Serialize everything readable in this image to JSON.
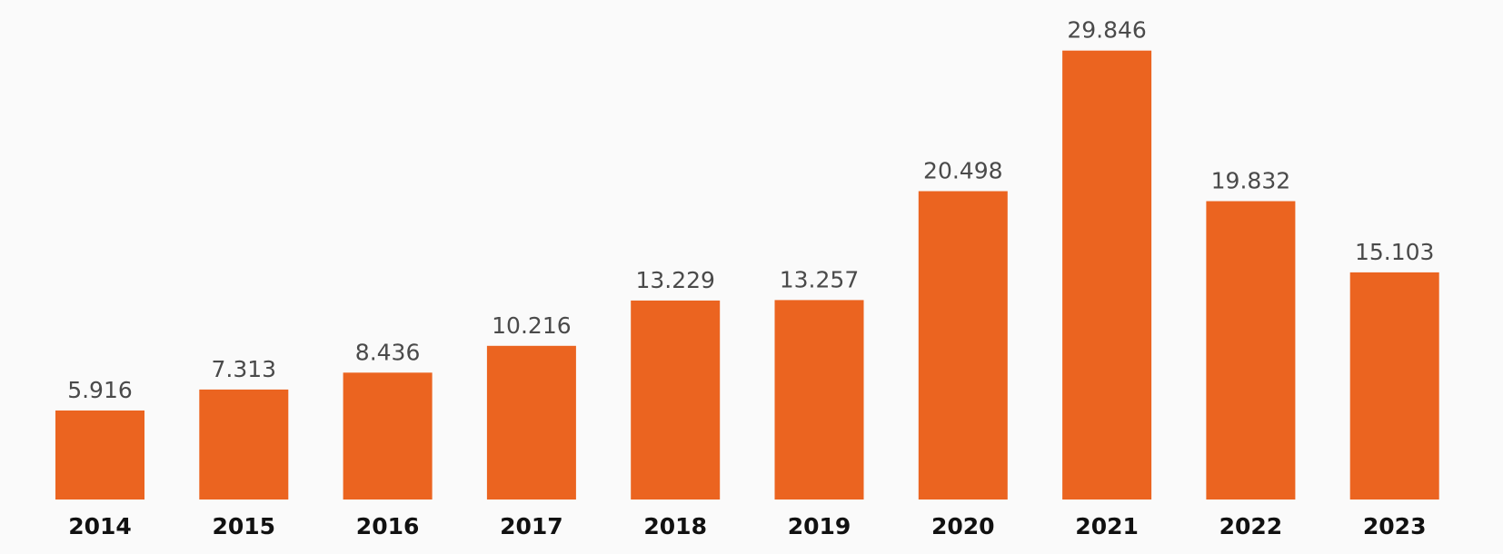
{
  "chart_data": {
    "type": "bar",
    "title": "",
    "xlabel": "",
    "ylabel": "",
    "categories": [
      "2014",
      "2015",
      "2016",
      "2017",
      "2018",
      "2019",
      "2020",
      "2021",
      "2022",
      "2023"
    ],
    "values": [
      5.916,
      7.313,
      8.436,
      10.216,
      13.229,
      13.257,
      20.498,
      29.846,
      19.832,
      15.103
    ],
    "value_labels": [
      "5.916",
      "7.313",
      "8.436",
      "10.216",
      "13.229",
      "13.257",
      "20.498",
      "29.846",
      "19.832",
      "15.103"
    ],
    "ylim": [
      0,
      32
    ],
    "grid": false,
    "legend": "none",
    "bar_color": "#eb6420",
    "background_color": "#fafafa"
  }
}
